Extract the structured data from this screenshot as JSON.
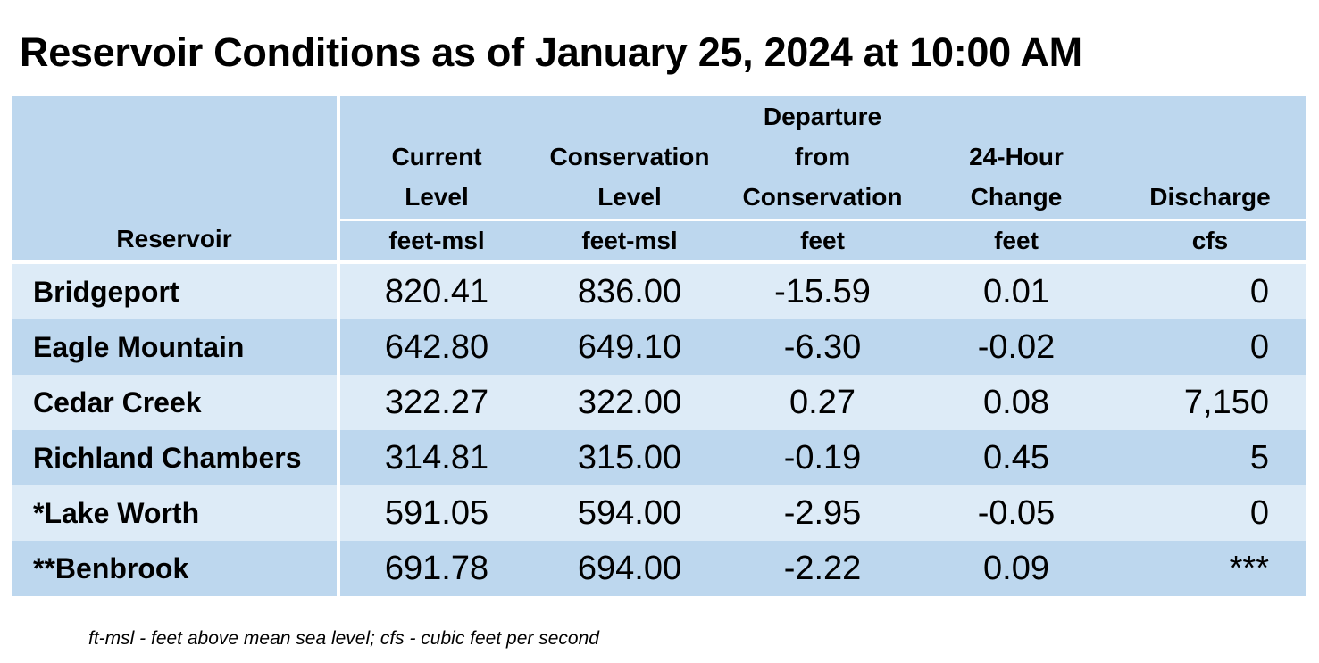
{
  "title": "Reservoir Conditions as of January 25, 2024 at 10:00 AM",
  "columns": [
    {
      "header_lines": [
        "",
        "",
        "",
        ""
      ],
      "unit": "Reservoir"
    },
    {
      "header_lines": [
        "",
        "Current",
        "Level"
      ],
      "unit": "feet-msl"
    },
    {
      "header_lines": [
        "",
        "Conservation",
        "Level"
      ],
      "unit": "feet-msl"
    },
    {
      "header_lines": [
        "Departure",
        "from",
        "Conservation"
      ],
      "unit": "feet"
    },
    {
      "header_lines": [
        "",
        "24-Hour",
        "Change"
      ],
      "unit": "feet"
    },
    {
      "header_lines": [
        "",
        "",
        "Discharge"
      ],
      "unit": "cfs"
    }
  ],
  "rows": [
    {
      "name": "Bridgeport",
      "current": "820.41",
      "conservation": "836.00",
      "departure": "-15.59",
      "change": "0.01",
      "discharge": "0"
    },
    {
      "name": "Eagle Mountain",
      "current": "642.80",
      "conservation": "649.10",
      "departure": "-6.30",
      "change": "-0.02",
      "discharge": "0"
    },
    {
      "name": "Cedar Creek",
      "current": "322.27",
      "conservation": "322.00",
      "departure": "0.27",
      "change": "0.08",
      "discharge": "7,150"
    },
    {
      "name": "Richland Chambers",
      "current": "314.81",
      "conservation": "315.00",
      "departure": "-0.19",
      "change": "0.45",
      "discharge": "5"
    },
    {
      "name": "*Lake Worth",
      "current": "591.05",
      "conservation": "594.00",
      "departure": "-2.95",
      "change": "-0.05",
      "discharge": "0"
    },
    {
      "name": "**Benbrook",
      "current": "691.78",
      "conservation": "694.00",
      "departure": "-2.22",
      "change": "0.09",
      "discharge": "***"
    }
  ],
  "footnote": "ft-msl - feet above mean sea level; cfs - cubic feet per second",
  "colors": {
    "header": "#bdd7ee",
    "row_light": "#ddebf7",
    "row_dark": "#bdd7ee"
  }
}
